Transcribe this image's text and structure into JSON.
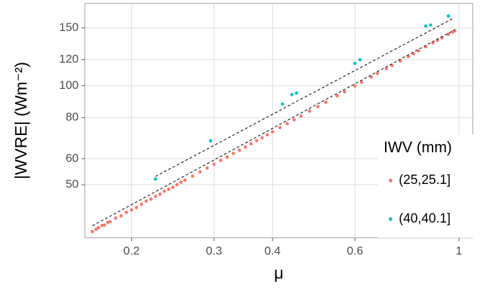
{
  "chart_data": {
    "type": "scatter",
    "x_label": "μ",
    "y_label": "|WVRE| (Wm⁻²)",
    "log_x": true,
    "log_y": true,
    "grid": true,
    "xlim": [
      0.159,
      1.07
    ],
    "ylim": [
      34.5,
      178
    ],
    "xticks": [
      0.2,
      0.3,
      0.4,
      0.6,
      1.0
    ],
    "yticks": [
      50,
      60,
      80,
      100,
      120,
      150
    ],
    "legend_title": "IWV (mm)",
    "legend_position": "right",
    "series": [
      {
        "name": "(25,25.1]",
        "color": "#f8766d",
        "x": [
          0.165,
          0.168,
          0.17,
          0.173,
          0.175,
          0.178,
          0.18,
          0.185,
          0.19,
          0.195,
          0.2,
          0.205,
          0.21,
          0.215,
          0.22,
          0.225,
          0.23,
          0.235,
          0.24,
          0.245,
          0.25,
          0.255,
          0.26,
          0.27,
          0.28,
          0.29,
          0.3,
          0.31,
          0.32,
          0.33,
          0.34,
          0.35,
          0.36,
          0.37,
          0.38,
          0.39,
          0.4,
          0.415,
          0.43,
          0.445,
          0.46,
          0.48,
          0.5,
          0.52,
          0.55,
          0.57,
          0.6,
          0.62,
          0.65,
          0.67,
          0.7,
          0.72,
          0.75,
          0.78,
          0.8,
          0.82,
          0.85,
          0.88,
          0.9,
          0.92,
          0.95,
          0.97,
          0.98
        ],
        "values": [
          36,
          36.6,
          37,
          37.6,
          37.7,
          38.4,
          38.6,
          39.6,
          40.2,
          41.2,
          41.9,
          42.6,
          43.6,
          44.6,
          45.2,
          46.1,
          46.8,
          47.8,
          48.4,
          49.1,
          50.0,
          50.9,
          51.6,
          53.1,
          54.7,
          56.2,
          57.7,
          59.3,
          60.7,
          62.3,
          63.7,
          65.1,
          66.6,
          68.1,
          69.5,
          70.9,
          72.4,
          74.6,
          76.7,
          78.8,
          80.9,
          83.7,
          86.4,
          89.1,
          93.2,
          95.9,
          99.8,
          102.5,
          106.3,
          109.0,
          112.8,
          115.2,
          119.0,
          122.7,
          125.2,
          127.6,
          131.4,
          135.1,
          137.5,
          139.9,
          143.5,
          145.7,
          147.0
        ]
      },
      {
        "name": "(40,40.1]",
        "color": "#00bfc4",
        "x": [
          0.225,
          0.295,
          0.42,
          0.44,
          0.45,
          0.6,
          0.615,
          0.85,
          0.87,
          0.95
        ],
        "values": [
          52,
          68,
          88,
          94,
          95,
          117,
          120,
          152,
          153,
          163
        ]
      }
    ],
    "fit_lines": [
      {
        "x": [
          0.225,
          0.97
        ],
        "y": [
          53,
          160
        ]
      },
      {
        "x": [
          0.165,
          0.98
        ],
        "y": [
          37.5,
          148
        ]
      }
    ]
  }
}
